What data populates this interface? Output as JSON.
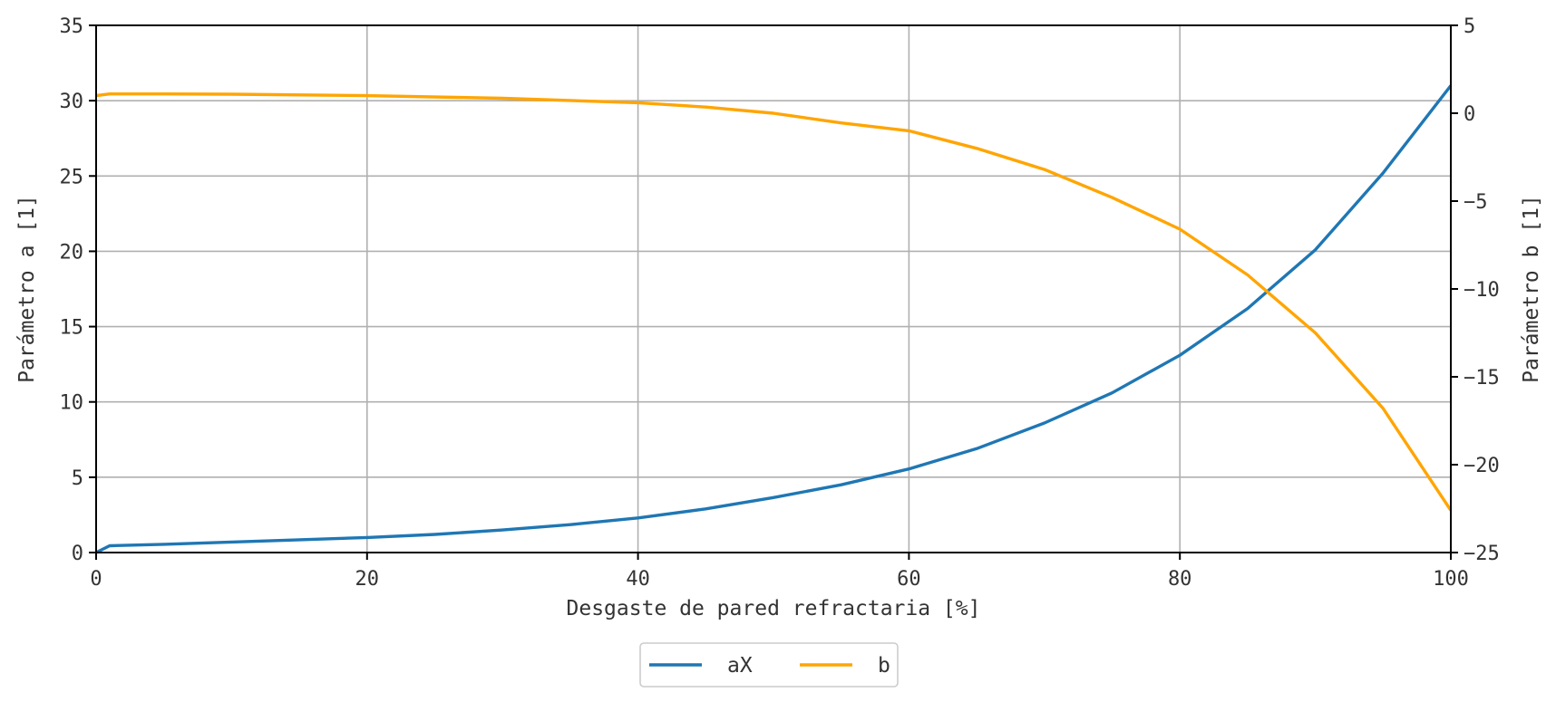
{
  "chart_data": {
    "type": "line",
    "xlabel": "Desgaste de pared refractaria [%]",
    "ylabel_left": "Parámetro a [1]",
    "ylabel_right": "Parámetro b [1]",
    "xlim": [
      0,
      100
    ],
    "ylim_left": [
      0,
      35
    ],
    "ylim_right": [
      -25,
      5
    ],
    "xticks": [
      "0",
      "20",
      "40",
      "60",
      "80",
      "100"
    ],
    "yticks_left": [
      "0",
      "5",
      "10",
      "15",
      "20",
      "25",
      "30",
      "35"
    ],
    "yticks_right": [
      "−25",
      "−20",
      "−15",
      "−10",
      "−5",
      "0",
      "5"
    ],
    "grid": true,
    "legend_position": "bottom-center",
    "series": [
      {
        "name": "aX",
        "axis": "left",
        "color": "#1f77b4",
        "x": [
          0,
          1,
          5,
          10,
          15,
          20,
          25,
          30,
          35,
          40,
          45,
          50,
          55,
          60,
          65,
          70,
          75,
          80,
          85,
          90,
          95,
          100
        ],
        "y": [
          0,
          0.45,
          0.55,
          0.7,
          0.85,
          1.0,
          1.2,
          1.5,
          1.85,
          2.3,
          2.9,
          3.65,
          4.5,
          5.55,
          6.9,
          8.6,
          10.6,
          13.1,
          16.2,
          20.1,
          25.2,
          31.0
        ]
      },
      {
        "name": "b",
        "axis": "right",
        "color": "#ffa500",
        "x": [
          0,
          1,
          5,
          10,
          20,
          30,
          40,
          45,
          50,
          55,
          60,
          65,
          70,
          75,
          80,
          85,
          90,
          95,
          100
        ],
        "y": [
          1.0,
          1.1,
          1.1,
          1.08,
          1.0,
          0.85,
          0.6,
          0.35,
          0.0,
          -0.55,
          -1.0,
          -2.0,
          -3.2,
          -4.8,
          -6.6,
          -9.2,
          -12.5,
          -16.8,
          -22.6
        ]
      }
    ]
  }
}
